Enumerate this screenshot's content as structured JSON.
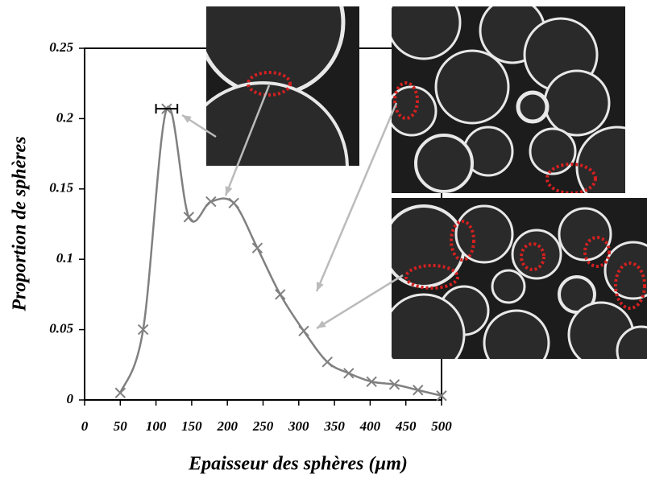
{
  "chart_data": {
    "type": "line",
    "x_label": "Epaisseur des sphères (µm)",
    "y_label": "Proportion de sphères",
    "series": [
      {
        "name": "Proportion",
        "color": "#808080",
        "x": [
          50,
          82,
          115,
          146,
          177,
          209,
          242,
          274,
          307,
          340,
          370,
          402,
          434,
          467,
          500
        ],
        "values": [
          0.005,
          0.05,
          0.207,
          0.13,
          0.141,
          0.14,
          0.108,
          0.075,
          0.049,
          0.027,
          0.019,
          0.013,
          0.011,
          0.007,
          0.003
        ],
        "x_errors": [
          null,
          null,
          15,
          null,
          null,
          null,
          null,
          null,
          null,
          null,
          null,
          null,
          null,
          null,
          null
        ]
      }
    ],
    "xlim": [
      0,
      500
    ],
    "xticks": [
      0,
      50,
      100,
      150,
      200,
      250,
      300,
      350,
      400,
      450,
      500
    ],
    "ylim": [
      0,
      0.25
    ],
    "yticks": [
      0,
      0.05,
      0.1,
      0.15,
      0.2,
      0.25
    ]
  }
}
